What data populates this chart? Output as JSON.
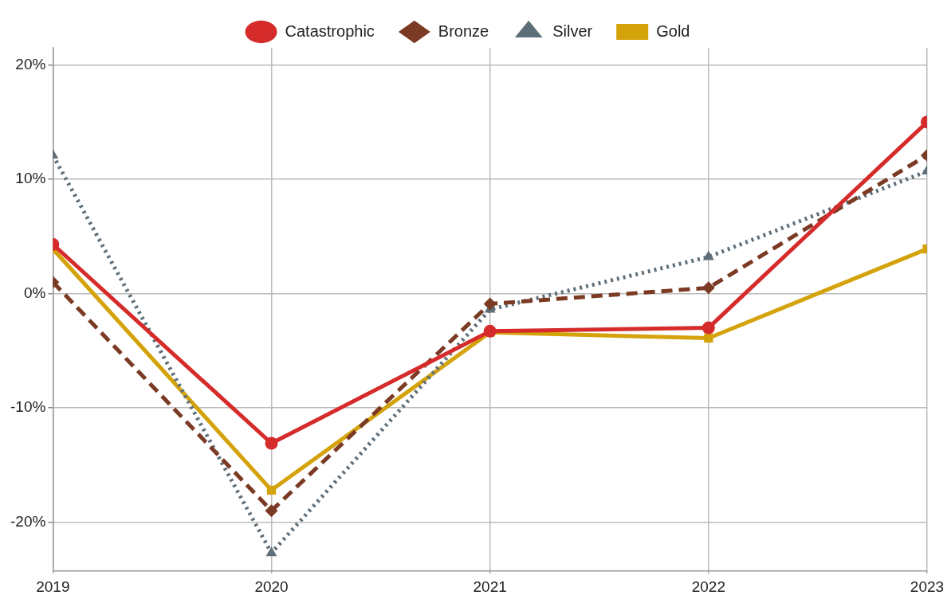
{
  "chart_data": {
    "type": "line",
    "x": [
      2019,
      2020,
      2021,
      2022,
      2023
    ],
    "xlim": [
      2019,
      2023
    ],
    "xticks": [
      2019,
      2020,
      2021,
      2022,
      2023
    ],
    "ylim": [
      -24.3,
      21.5
    ],
    "yticks": [
      {
        "value": -20,
        "label": "-20%"
      },
      {
        "value": -10,
        "label": "-10%"
      },
      {
        "value": 0,
        "label": "0%"
      },
      {
        "value": 10,
        "label": "10%"
      },
      {
        "value": 20,
        "label": "20%"
      }
    ],
    "grid": true,
    "legend": "top",
    "series": [
      {
        "name": "Catastrophic",
        "color": "#d62b2b",
        "marker": "circle",
        "line_style": "solid",
        "values": [
          4.3,
          -13.1,
          -3.3,
          -3.0,
          15.0
        ]
      },
      {
        "name": "Bronze",
        "color": "#7b3a24",
        "marker": "diamond",
        "line_style": "dashed",
        "values": [
          1.0,
          -19.0,
          -0.9,
          0.5,
          12.1
        ]
      },
      {
        "name": "Silver",
        "color": "#5f6f7a",
        "marker": "triangle",
        "line_style": "dotted",
        "values": [
          12.1,
          -22.7,
          -1.4,
          3.2,
          10.7
        ]
      },
      {
        "name": "Gold",
        "color": "#d4a20a",
        "marker": "square",
        "line_style": "solid",
        "values": [
          3.9,
          -17.2,
          -3.4,
          -3.9,
          3.9
        ]
      }
    ]
  }
}
